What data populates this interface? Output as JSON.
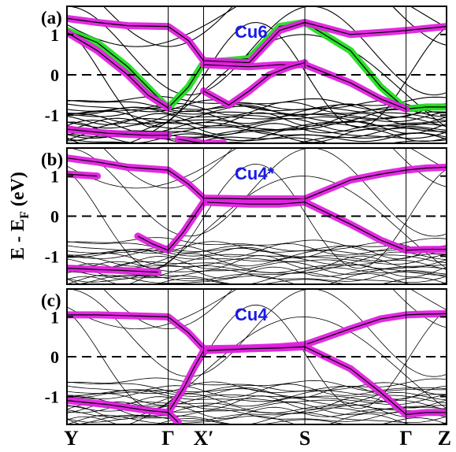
{
  "chart_data": {
    "type": "line",
    "ylabel_main": "E - E",
    "ylabel_sub": "F",
    "ylabel_unit": " (eV)",
    "x_ticks": [
      "Y",
      "Γ",
      "X′",
      "S",
      "Γ",
      "Z"
    ],
    "x_positions": [
      0,
      1,
      1.35,
      2.35,
      3.35,
      3.75
    ],
    "ylim": [
      -1.7,
      1.7
    ],
    "y_ticks": [
      "1",
      "0",
      "-1"
    ],
    "y_tick_values": [
      1,
      0,
      -1
    ],
    "fermi_level": 0,
    "colors": {
      "band": "#000000",
      "cu_weight": "#e020e0",
      "cu6_green": "#22dd22",
      "annotation": "#1a1ae6"
    },
    "panels": [
      {
        "tag": "(a)",
        "annotation": "Cu6",
        "weighted_bands": [
          {
            "color": "#22dd22",
            "x": [
              0,
              0.3,
              0.6,
              1.0,
              1.2,
              1.35,
              1.8,
              2.1,
              2.35,
              2.8,
              3.1,
              3.35,
              3.55,
              3.75
            ],
            "y": [
              1.1,
              0.8,
              0.2,
              -0.82,
              -0.3,
              0.3,
              0.4,
              1.2,
              1.3,
              0.6,
              -0.3,
              -0.85,
              -0.8,
              -0.8
            ]
          },
          {
            "color": "#e020e0",
            "x": [
              0,
              0.3,
              0.6,
              1.0,
              1.2,
              1.35,
              1.8,
              2.1,
              2.35,
              2.8,
              3.1,
              3.35,
              3.55,
              3.75
            ],
            "y": [
              1.4,
              1.3,
              1.22,
              1.2,
              0.85,
              0.35,
              0.3,
              1.1,
              1.3,
              1.0,
              1.05,
              1.1,
              1.15,
              1.2
            ]
          },
          {
            "color": "#e020e0",
            "x": [
              0,
              0.3,
              0.6,
              0.8,
              1.0
            ],
            "y": [
              1.05,
              0.6,
              0.0,
              -0.5,
              -0.82
            ]
          },
          {
            "color": "#e020e0",
            "x": [
              1.35,
              1.8,
              2.1,
              2.35,
              2.8,
              3.1,
              3.35
            ],
            "y": [
              0.25,
              0.2,
              0.25,
              0.25,
              -0.2,
              -0.6,
              -0.85
            ]
          },
          {
            "color": "#e020e0",
            "x": [
              1.35,
              1.6,
              1.8,
              2.0,
              2.2,
              2.35
            ],
            "y": [
              -0.4,
              -0.75,
              -0.4,
              0.0,
              0.2,
              0.3
            ]
          },
          {
            "color": "#e020e0",
            "x": [
              0,
              0.4,
              0.8,
              1.0
            ],
            "y": [
              -1.35,
              -1.45,
              -1.5,
              -1.5
            ]
          },
          {
            "color": "#e020e0",
            "x": [
              1.1,
              1.35,
              1.55
            ],
            "y": [
              -1.6,
              -1.7,
              -1.7
            ]
          }
        ]
      },
      {
        "tag": "(b)",
        "annotation": "Cu4*",
        "weighted_bands": [
          {
            "color": "#e020e0",
            "x": [
              0,
              0.3,
              0.6,
              1.0,
              1.2,
              1.35,
              1.8,
              2.1,
              2.35,
              2.8,
              3.1,
              3.35,
              3.55,
              3.75
            ],
            "y": [
              1.45,
              1.35,
              1.22,
              1.15,
              0.8,
              0.45,
              0.43,
              0.43,
              0.43,
              0.9,
              1.05,
              1.15,
              1.2,
              1.22
            ]
          },
          {
            "color": "#e020e0",
            "x": [
              0,
              0.3
            ],
            "y": [
              1.05,
              1.0
            ]
          },
          {
            "color": "#e020e0",
            "x": [
              1.35,
              1.8,
              2.1,
              2.35,
              2.8,
              3.1,
              3.35
            ],
            "y": [
              0.35,
              0.3,
              0.3,
              0.35,
              -0.2,
              -0.6,
              -0.85
            ]
          },
          {
            "color": "#e020e0",
            "x": [
              0.7,
              0.85,
              1.0,
              1.15,
              1.35
            ],
            "y": [
              -0.5,
              -0.7,
              -0.85,
              -0.4,
              0.35
            ]
          },
          {
            "color": "#e020e0",
            "x": [
              0,
              0.5,
              0.9
            ],
            "y": [
              -1.3,
              -1.35,
              -1.4
            ]
          },
          {
            "color": "#e020e0",
            "x": [
              3.35,
              3.55,
              3.75
            ],
            "y": [
              -0.85,
              -0.83,
              -0.83
            ]
          }
        ]
      },
      {
        "tag": "(c)",
        "annotation": "Cu4",
        "weighted_bands": [
          {
            "color": "#e020e0",
            "x": [
              0,
              0.3,
              0.6,
              1.0,
              1.2,
              1.35,
              1.8,
              2.1,
              2.35,
              2.8,
              3.1,
              3.35,
              3.55,
              3.75
            ],
            "y": [
              1.05,
              1.05,
              1.03,
              1.0,
              0.6,
              0.2,
              0.22,
              0.25,
              0.3,
              0.7,
              0.95,
              1.05,
              1.07,
              1.08
            ]
          },
          {
            "color": "#e020e0",
            "x": [
              1.35,
              1.8,
              2.1,
              2.35,
              2.8,
              3.1,
              3.35,
              3.55,
              3.75
            ],
            "y": [
              0.15,
              0.2,
              0.22,
              0.25,
              -0.3,
              -0.9,
              -1.45,
              -1.4,
              -1.4
            ]
          },
          {
            "color": "#e020e0",
            "x": [
              1.0,
              1.15,
              1.25,
              1.35
            ],
            "y": [
              -1.4,
              -0.8,
              -0.3,
              0.15
            ]
          },
          {
            "color": "#e020e0",
            "x": [
              0,
              0.4,
              0.8,
              1.0,
              1.1
            ],
            "y": [
              -1.1,
              -1.2,
              -1.35,
              -1.4,
              -1.65
            ]
          }
        ]
      }
    ]
  }
}
